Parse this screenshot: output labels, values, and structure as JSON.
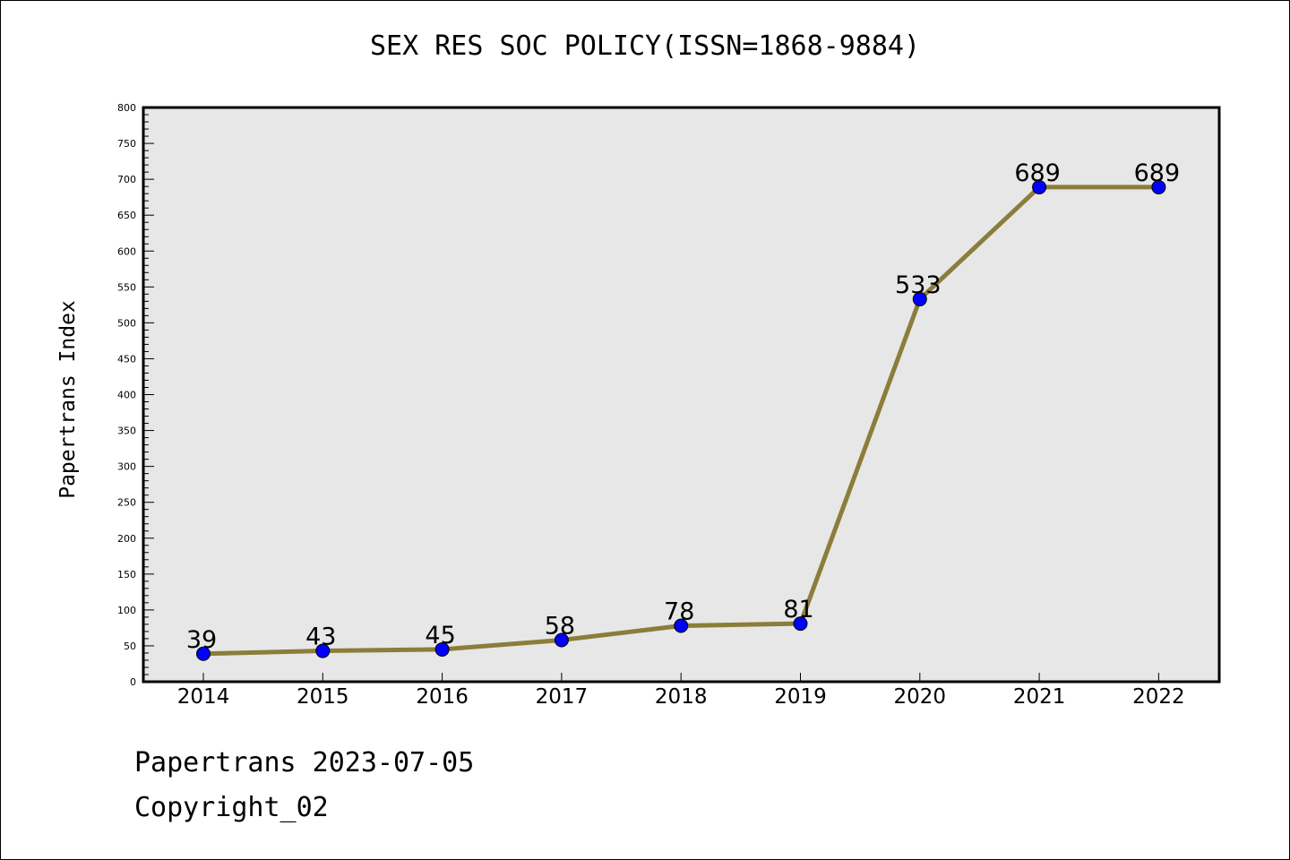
{
  "chart_data": {
    "type": "line",
    "title": "SEX RES SOC POLICY(ISSN=1868-9884)",
    "xlabel": "",
    "ylabel": "Papertrans Index",
    "categories": [
      "2014",
      "2015",
      "2016",
      "2017",
      "2018",
      "2019",
      "2020",
      "2021",
      "2022"
    ],
    "series": [
      {
        "values": [
          39,
          43,
          45,
          58,
          78,
          81,
          533,
          689,
          689
        ],
        "labels": [
          "39",
          "43",
          "45",
          "58",
          "78",
          "81",
          "533",
          "689",
          "689"
        ]
      }
    ],
    "ylim": [
      0,
      800
    ],
    "y_ticks": [
      "0",
      "50",
      "100",
      "150",
      "200",
      "250",
      "300",
      "350",
      "400",
      "450",
      "500",
      "550",
      "600",
      "650",
      "700",
      "750",
      "800"
    ],
    "grid": false,
    "legend": "none",
    "colors": {
      "line": "#8b7d3a",
      "marker": "#0000ff",
      "plot_background": "#e7e7e7"
    }
  },
  "footer": {
    "date_line": "Papertrans 2023-07-05",
    "copyright": "Copyright_02"
  }
}
